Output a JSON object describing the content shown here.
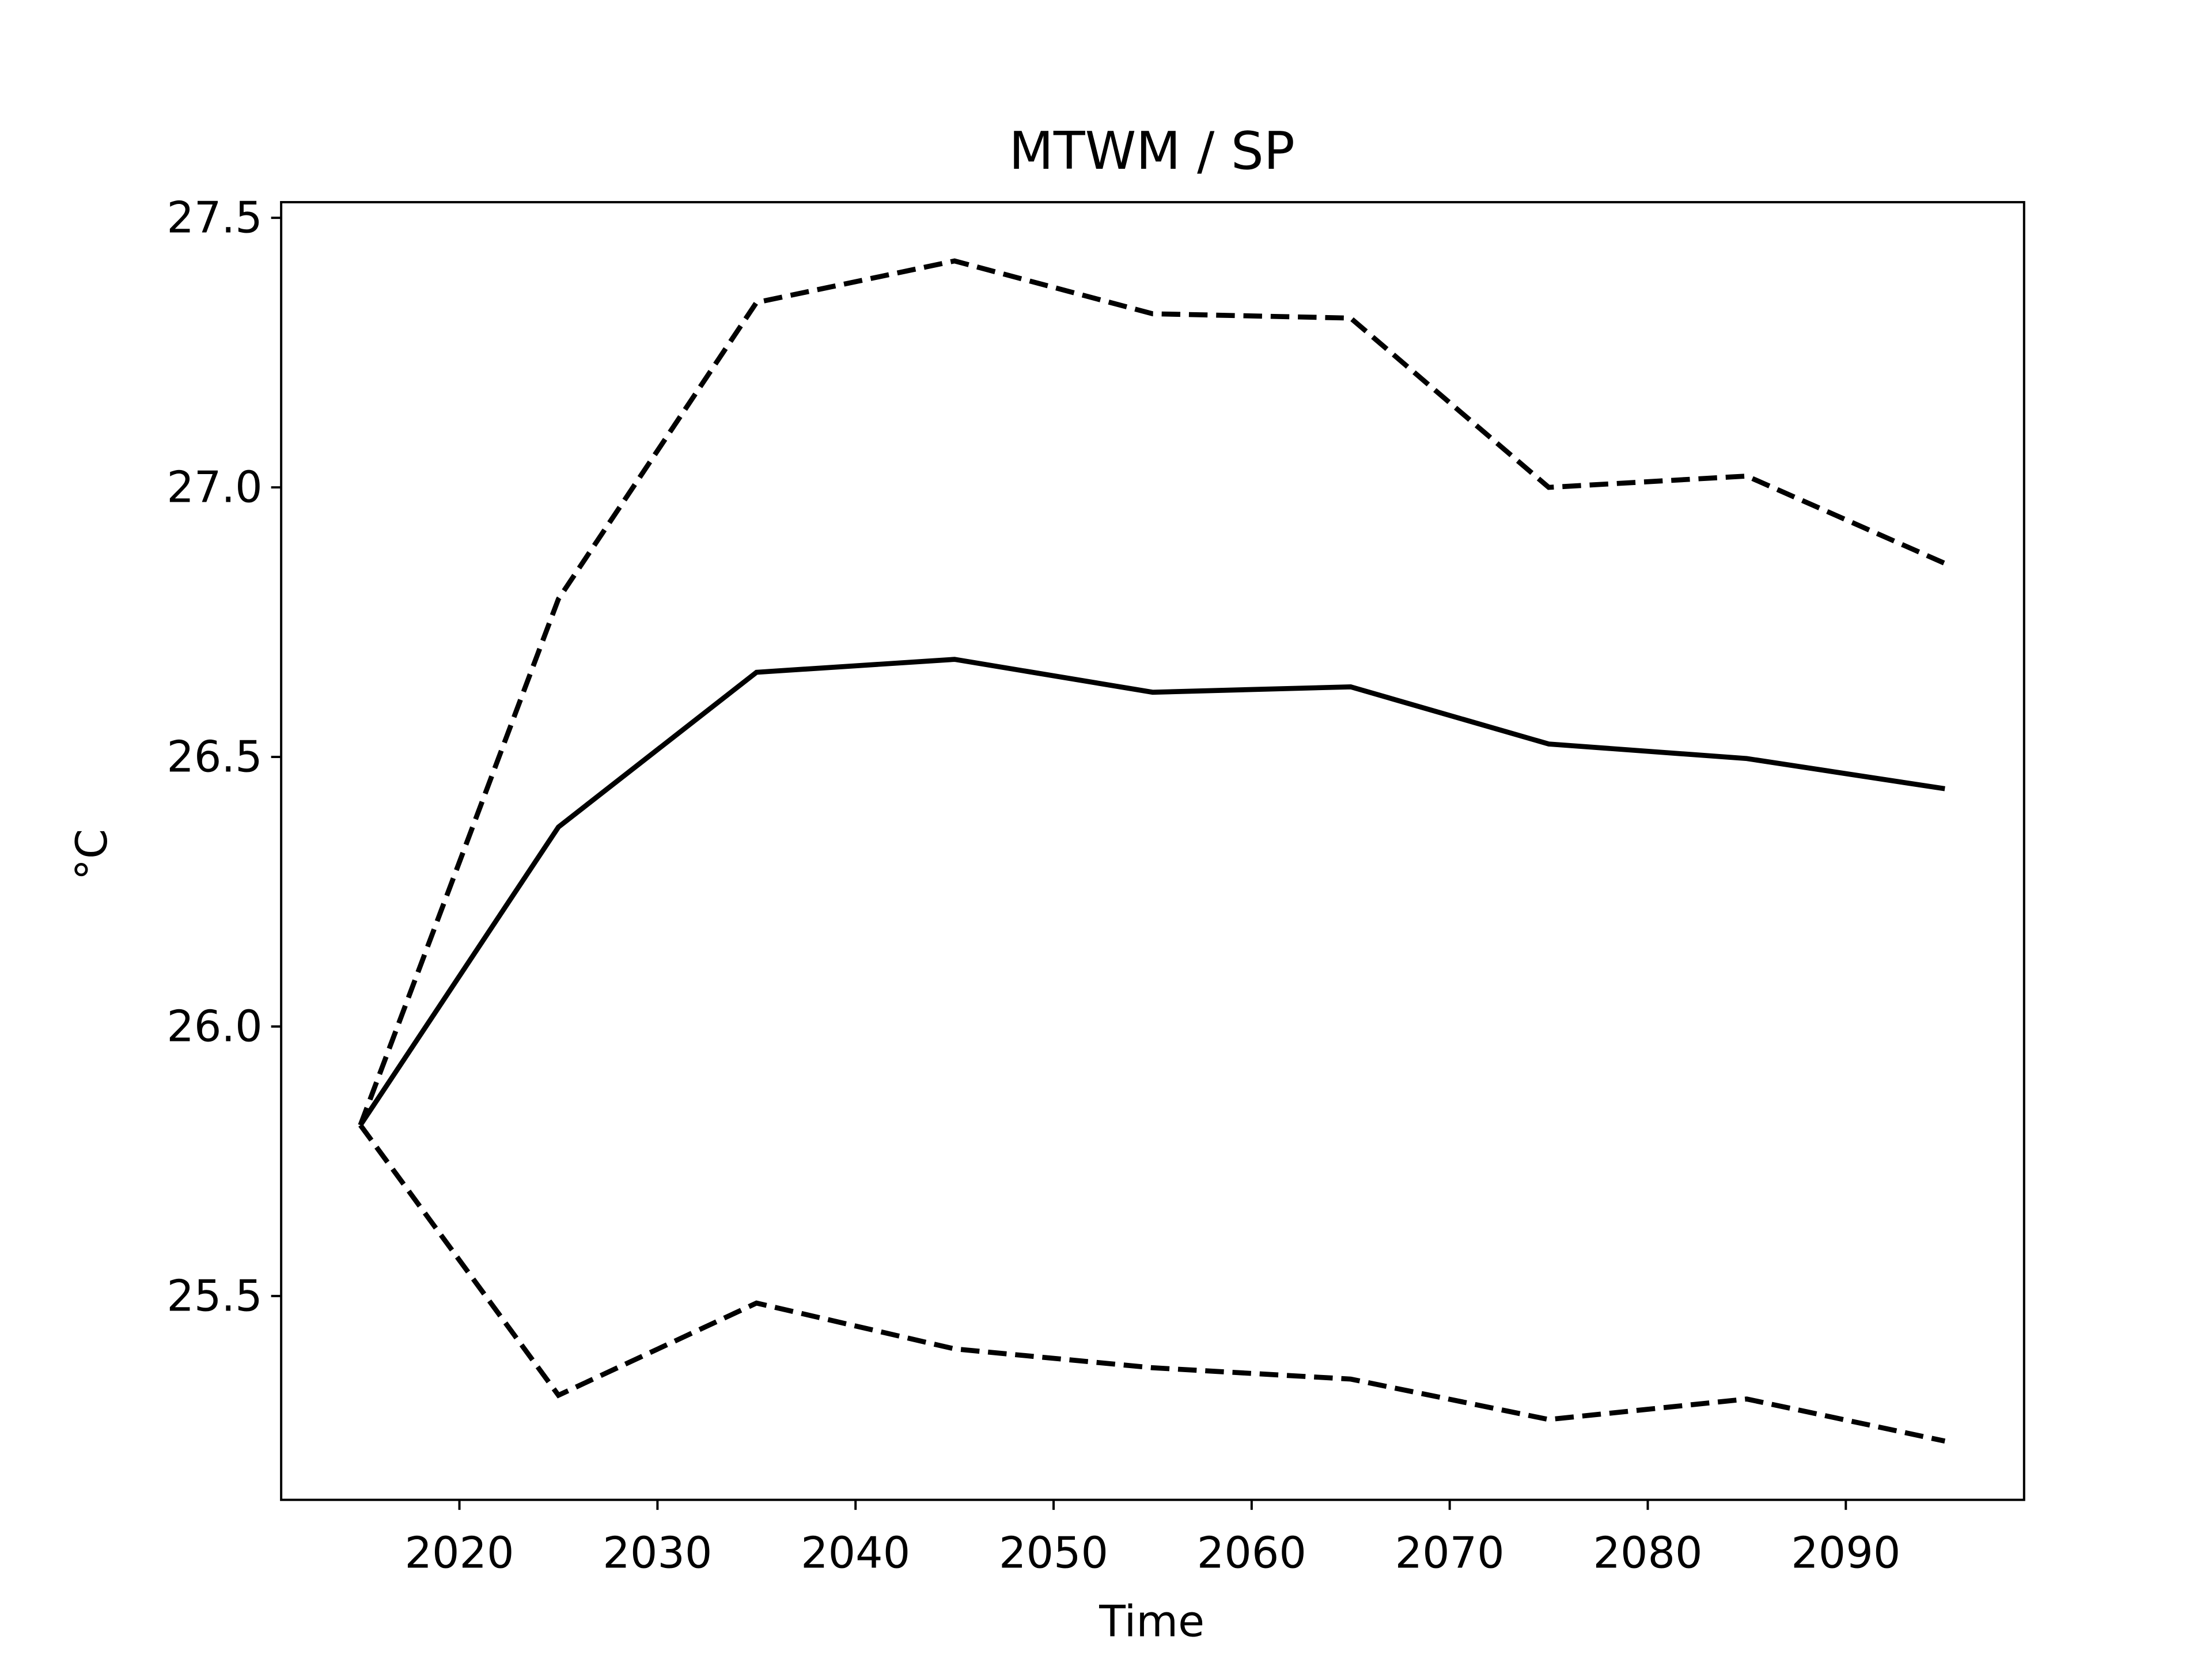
{
  "chart_data": {
    "type": "line",
    "title": "MTWM / SP",
    "x_label": "Time",
    "y_label": "°C",
    "x": [
      2015,
      2025,
      2035,
      2045,
      2055,
      2065,
      2075,
      2085,
      2095
    ],
    "series": [
      {
        "color": "#000000",
        "linestyle": "solid",
        "values": [
          25.817,
          26.37,
          26.657,
          26.681,
          26.62,
          26.63,
          26.524,
          26.497,
          26.441
        ]
      },
      {
        "color": "#000000",
        "linestyle": "dashed",
        "values": [
          25.817,
          26.793,
          27.343,
          27.42,
          27.322,
          27.314,
          27.0,
          27.021,
          26.859
        ]
      },
      {
        "color": "#000000",
        "linestyle": "dashed",
        "values": [
          25.817,
          25.316,
          25.487,
          25.402,
          25.367,
          25.346,
          25.271,
          25.309,
          25.231
        ]
      }
    ],
    "xlim": [
      2011,
      2099
    ],
    "xticks": [
      2020,
      2030,
      2040,
      2050,
      2060,
      2070,
      2080,
      2090
    ],
    "ylim": [
      25.122,
      27.529
    ],
    "yticks": [
      25.5,
      {
        "value": 26,
        "label": "26.0"
      },
      26.5,
      {
        "value": 27,
        "label": "27.0"
      },
      27.5
    ],
    "grid": false
  }
}
